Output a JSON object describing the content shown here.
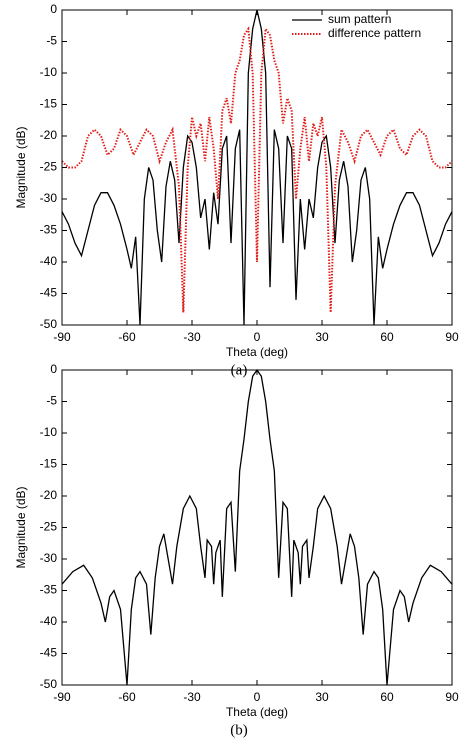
{
  "chart_data": [
    {
      "type": "line",
      "caption": "(a)",
      "xlabel": "Theta (deg)",
      "ylabel": "Magnitude (dB)",
      "xlim": [
        -90,
        90
      ],
      "xticks": [
        -90,
        -60,
        -30,
        0,
        30,
        60,
        90
      ],
      "ylim": [
        -50,
        0
      ],
      "yticks": [
        0,
        -5,
        -10,
        -15,
        -20,
        -25,
        -30,
        -35,
        -40,
        -45,
        -50
      ],
      "legend": "upper right",
      "series": [
        {
          "name": "sum pattern",
          "color": "#000000",
          "style": "solid",
          "x": [
            -90,
            -87,
            -84,
            -81,
            -78,
            -75,
            -72,
            -69,
            -66,
            -63,
            -60,
            -58,
            -56,
            -54,
            -52,
            -50,
            -48,
            -46,
            -44,
            -42,
            -40,
            -38,
            -36,
            -34,
            -32,
            -30,
            -28,
            -26,
            -24,
            -22,
            -20,
            -18,
            -16,
            -14,
            -12,
            -10,
            -8,
            -6,
            -4,
            -2,
            0,
            2,
            4,
            6,
            8,
            10,
            12,
            14,
            16,
            18,
            20,
            22,
            24,
            26,
            28,
            30,
            32,
            34,
            36,
            38,
            40,
            42,
            44,
            46,
            48,
            50,
            52,
            54,
            56,
            58,
            60,
            63,
            66,
            69,
            72,
            75,
            78,
            81,
            84,
            87,
            90
          ],
          "values": [
            -32,
            -34,
            -37,
            -39,
            -35,
            -31,
            -29,
            -29,
            -31,
            -34,
            -38,
            -41,
            -36,
            -50,
            -30,
            -25,
            -27,
            -35,
            -40,
            -28,
            -24,
            -27,
            -37,
            -25,
            -20,
            -21,
            -25,
            -33,
            -30,
            -38,
            -29,
            -34,
            -22,
            -20,
            -37,
            -22,
            -19,
            -50,
            -10,
            -3,
            0,
            -3,
            -10,
            -44,
            -19,
            -22,
            -37,
            -20,
            -22,
            -46,
            -30,
            -38,
            -30,
            -33,
            -25,
            -21,
            -20,
            -25,
            -37,
            -27,
            -24,
            -28,
            -40,
            -35,
            -27,
            -25,
            -30,
            -50,
            -36,
            -41,
            -38,
            -34,
            -31,
            -29,
            -29,
            -31,
            -35,
            -39,
            -37,
            -34,
            -32
          ]
        },
        {
          "name": "difference pattern",
          "color": "#e0201c",
          "style": "dotted",
          "x": [
            -90,
            -87,
            -84,
            -81,
            -78,
            -75,
            -72,
            -69,
            -66,
            -63,
            -60,
            -57,
            -54,
            -51,
            -48,
            -45,
            -42,
            -39,
            -36,
            -34,
            -32,
            -30,
            -28,
            -26,
            -24,
            -22,
            -20,
            -18,
            -16,
            -14,
            -12,
            -10,
            -8,
            -6,
            -4,
            -2,
            0,
            2,
            4,
            6,
            8,
            10,
            12,
            14,
            16,
            18,
            20,
            22,
            24,
            26,
            28,
            30,
            32,
            34,
            36,
            39,
            42,
            45,
            48,
            51,
            54,
            57,
            60,
            63,
            66,
            69,
            72,
            75,
            78,
            81,
            84,
            87,
            90
          ],
          "values": [
            -24,
            -25,
            -25,
            -24,
            -20,
            -19,
            -20,
            -23,
            -22,
            -19,
            -20,
            -23,
            -21,
            -19,
            -20,
            -24,
            -21,
            -19,
            -28,
            -48,
            -25,
            -17,
            -20,
            -18,
            -24,
            -17,
            -22,
            -30,
            -16,
            -14,
            -18,
            -10,
            -8,
            -4,
            -3,
            -10,
            -40,
            -10,
            -3,
            -4,
            -8,
            -10,
            -18,
            -14,
            -16,
            -30,
            -22,
            -17,
            -24,
            -18,
            -20,
            -17,
            -25,
            -48,
            -28,
            -19,
            -21,
            -24,
            -20,
            -19,
            -21,
            -23,
            -20,
            -19,
            -22,
            -23,
            -20,
            -19,
            -20,
            -24,
            -25,
            -25,
            -24
          ]
        }
      ]
    },
    {
      "type": "line",
      "caption": "(b)",
      "xlabel": "Theta (deg)",
      "ylabel": "Magnitude (dB)",
      "xlim": [
        -90,
        90
      ],
      "xticks": [
        -90,
        -60,
        -30,
        0,
        30,
        60,
        90
      ],
      "ylim": [
        -50,
        0
      ],
      "yticks": [
        0,
        -5,
        -10,
        -15,
        -20,
        -25,
        -30,
        -35,
        -40,
        -45,
        -50
      ],
      "series": [
        {
          "color": "#000000",
          "style": "solid",
          "x": [
            -90,
            -85,
            -80,
            -76,
            -72,
            -70,
            -68,
            -66,
            -63,
            -60,
            -58,
            -56,
            -54,
            -51,
            -49,
            -47,
            -45,
            -43,
            -41,
            -39,
            -37,
            -34,
            -31,
            -28,
            -26,
            -24,
            -23,
            -21,
            -20,
            -19,
            -17,
            -16,
            -14,
            -12,
            -10,
            -8,
            -6,
            -4,
            -2,
            0,
            2,
            4,
            6,
            8,
            10,
            12,
            14,
            16,
            17,
            19,
            20,
            21,
            23,
            24,
            26,
            28,
            31,
            34,
            37,
            39,
            41,
            43,
            45,
            47,
            49,
            51,
            54,
            56,
            58,
            60,
            63,
            66,
            68,
            70,
            72,
            76,
            80,
            85,
            90
          ],
          "values": [
            -34,
            -32,
            -31,
            -33,
            -37,
            -40,
            -36,
            -35,
            -38,
            -50,
            -38,
            -33,
            -32,
            -34,
            -42,
            -33,
            -28,
            -26,
            -30,
            -34,
            -28,
            -22,
            -20,
            -22,
            -28,
            -33,
            -27,
            -28,
            -34,
            -29,
            -27,
            -36,
            -22,
            -21,
            -32,
            -16,
            -11,
            -5,
            -1,
            0,
            -1,
            -5,
            -11,
            -16,
            -33,
            -21,
            -22,
            -36,
            -27,
            -29,
            -34,
            -28,
            -27,
            -33,
            -28,
            -22,
            -20,
            -22,
            -28,
            -34,
            -30,
            -26,
            -28,
            -33,
            -42,
            -34,
            -32,
            -33,
            -38,
            -50,
            -38,
            -35,
            -36,
            -40,
            -37,
            -33,
            -31,
            -32,
            -34
          ]
        }
      ]
    }
  ]
}
